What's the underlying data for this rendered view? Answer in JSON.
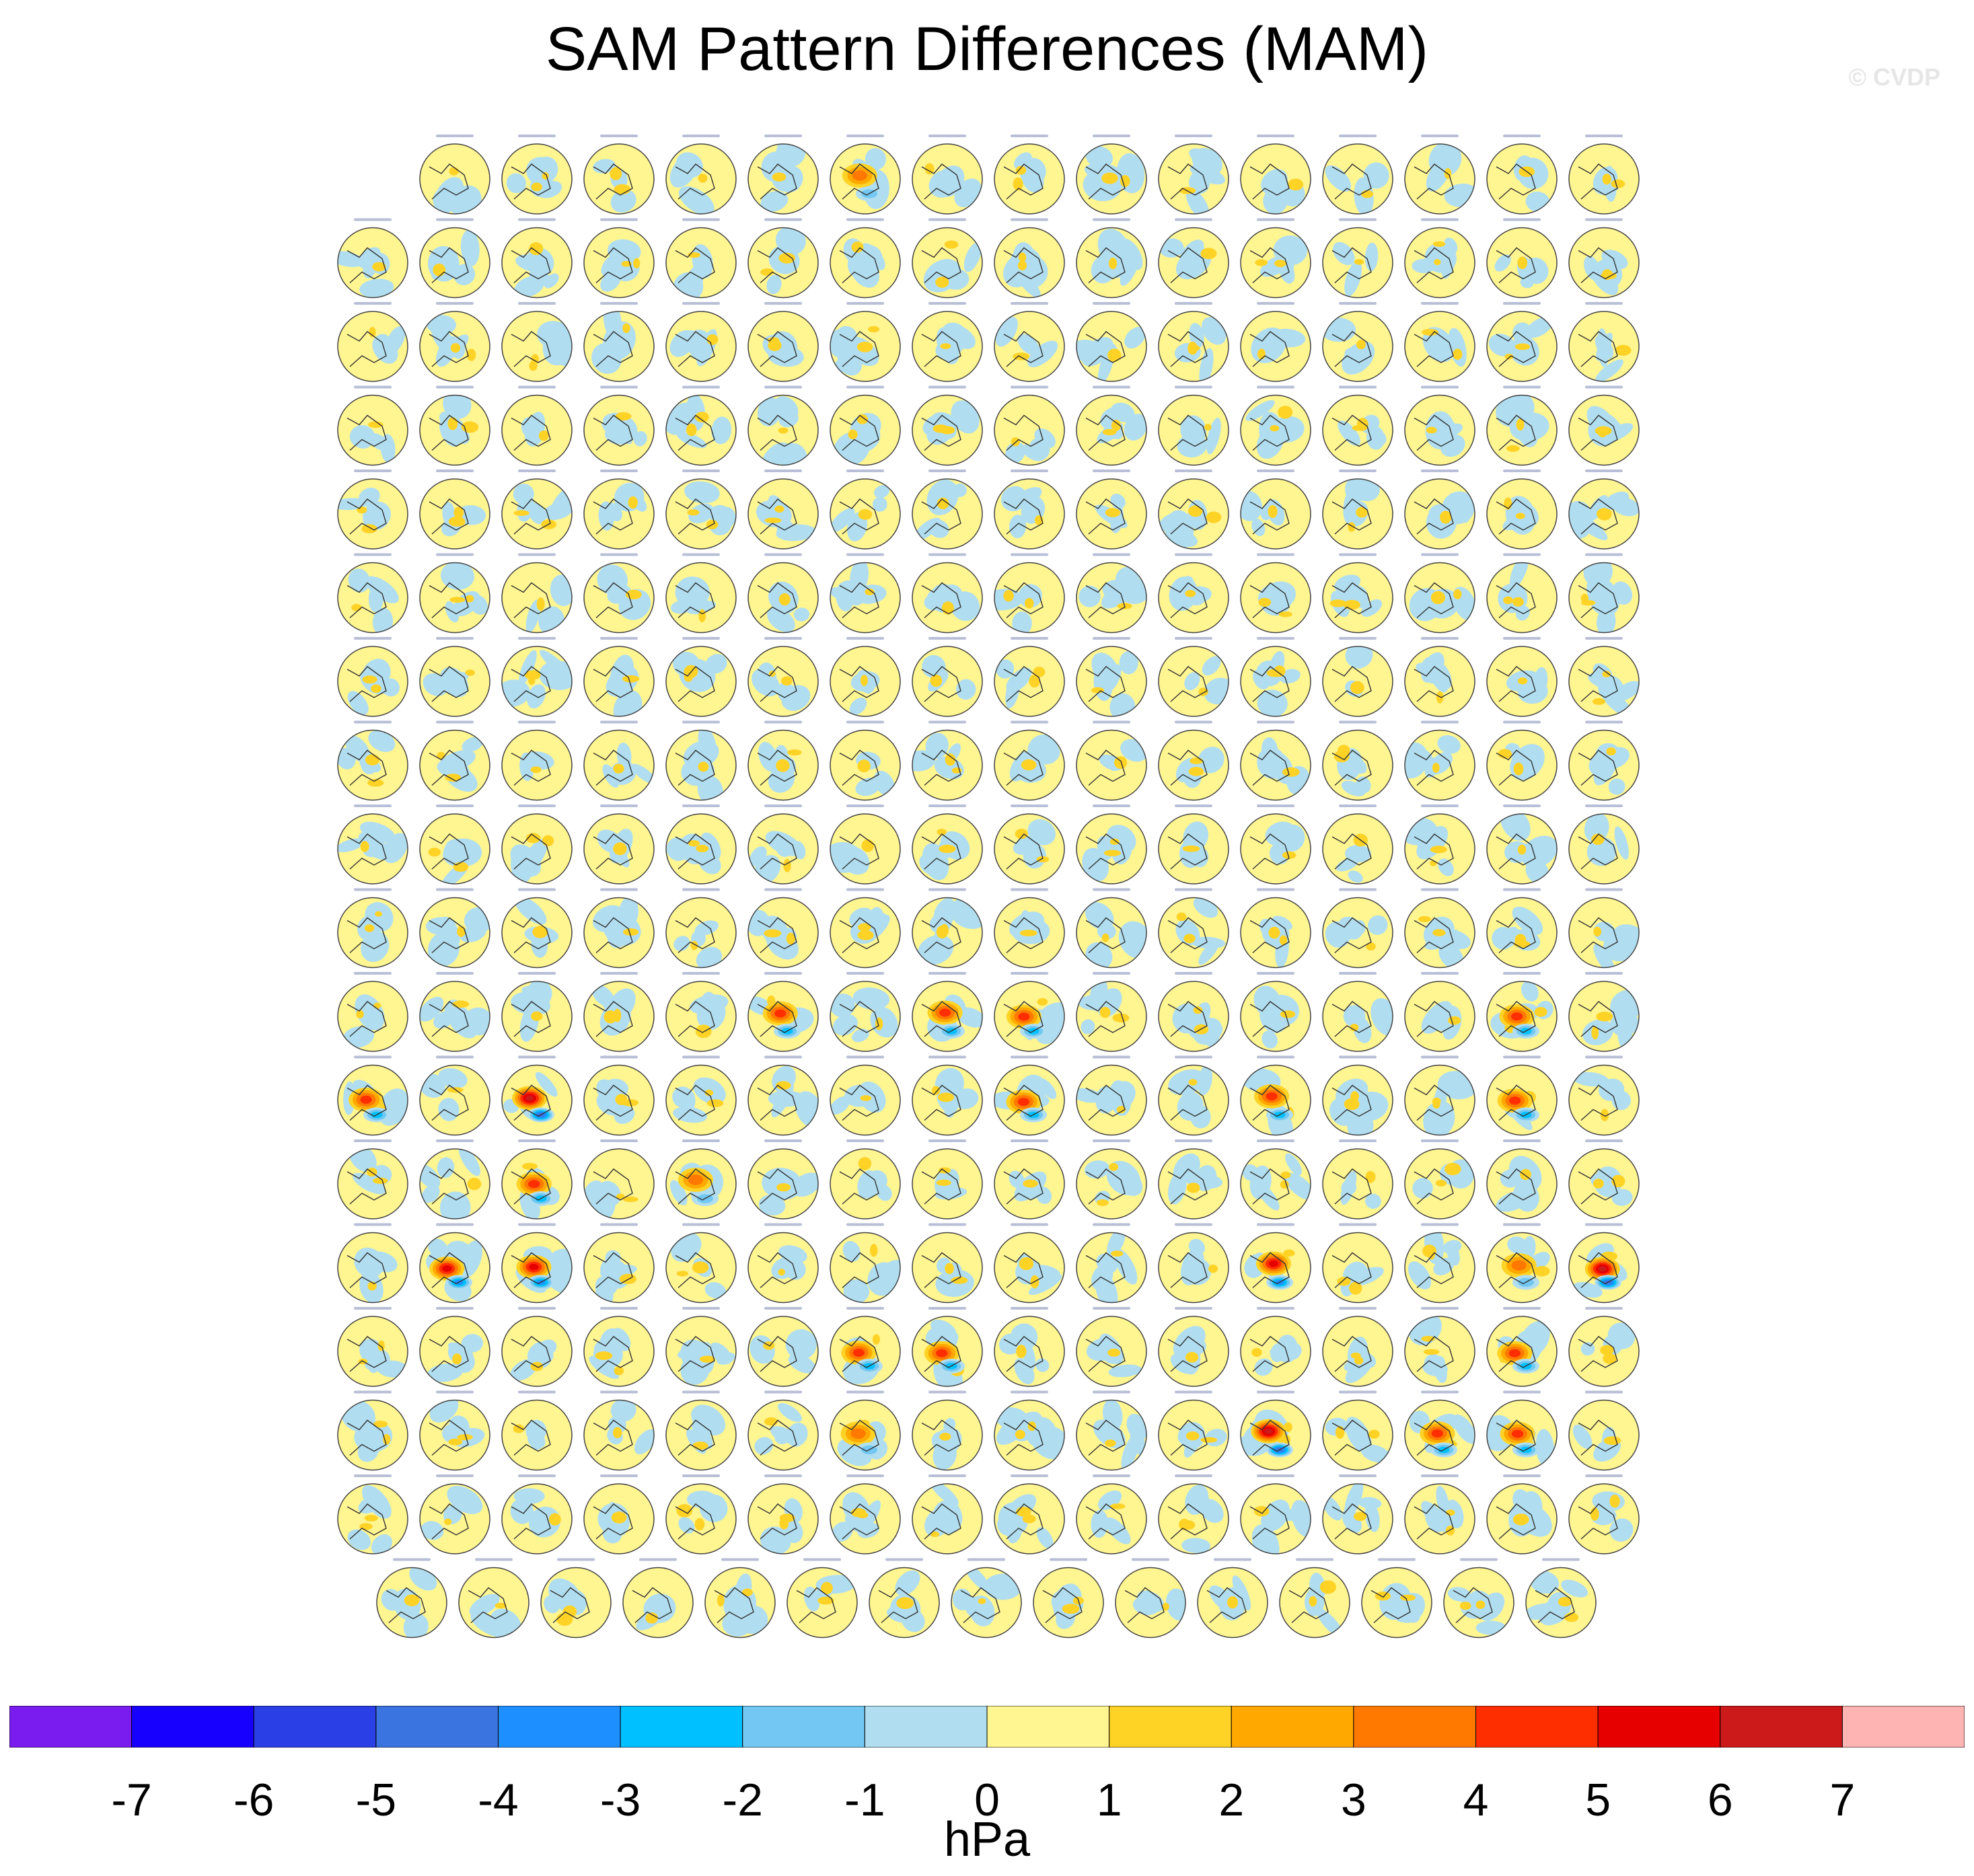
{
  "title": "SAM Pattern Differences (MAM)",
  "credit": "© CVDP",
  "colorbar": {
    "units": "hPa",
    "tick_labels": [
      "-7",
      "-6",
      "-5",
      "-4",
      "-3",
      "-2",
      "-1",
      "0",
      "1",
      "2",
      "3",
      "4",
      "5",
      "6",
      "7"
    ],
    "colors": [
      "#7a1cf0",
      "#1800ff",
      "#2a40e6",
      "#3a74e0",
      "#1e8fff",
      "#00c0ff",
      "#72c8f2",
      "#b0def0",
      "#fff591",
      "#ffd326",
      "#ffa800",
      "#ff7800",
      "#ff2e00",
      "#e60000",
      "#cc1a1a",
      "#ffb4b4"
    ]
  },
  "chart_data": {
    "type": "heatmap",
    "title": "SAM Pattern Differences (MAM)",
    "description_units": "hPa",
    "panel_rows": [
      15,
      16,
      16,
      16,
      16,
      16,
      16,
      16,
      16,
      16,
      16,
      16,
      16,
      16,
      16,
      16,
      16,
      15
    ],
    "levels": [
      -7,
      -6,
      -5,
      -4,
      -3,
      -2,
      -1,
      0,
      1,
      2,
      3,
      4,
      5,
      6,
      7
    ],
    "strong_panels": [
      {
        "row": 0,
        "col": 6,
        "peak": 3
      },
      {
        "row": 10,
        "col": 5,
        "peak": 4
      },
      {
        "row": 10,
        "col": 7,
        "peak": 4
      },
      {
        "row": 10,
        "col": 8,
        "peak": 4
      },
      {
        "row": 10,
        "col": 14,
        "peak": 4
      },
      {
        "row": 11,
        "col": 0,
        "peak": 4
      },
      {
        "row": 11,
        "col": 2,
        "peak": 6
      },
      {
        "row": 11,
        "col": 8,
        "peak": 4
      },
      {
        "row": 11,
        "col": 11,
        "peak": 4
      },
      {
        "row": 11,
        "col": 14,
        "peak": 4
      },
      {
        "row": 12,
        "col": 2,
        "peak": 4
      },
      {
        "row": 12,
        "col": 4,
        "peak": 3
      },
      {
        "row": 13,
        "col": 1,
        "peak": 5
      },
      {
        "row": 13,
        "col": 2,
        "peak": 5
      },
      {
        "row": 13,
        "col": 11,
        "peak": 5
      },
      {
        "row": 13,
        "col": 14,
        "peak": 3
      },
      {
        "row": 13,
        "col": 15,
        "peak": 6
      },
      {
        "row": 14,
        "col": 6,
        "peak": 4
      },
      {
        "row": 14,
        "col": 7,
        "peak": 4
      },
      {
        "row": 14,
        "col": 14,
        "peak": 4
      },
      {
        "row": 15,
        "col": 6,
        "peak": 3
      },
      {
        "row": 15,
        "col": 11,
        "peak": 6
      },
      {
        "row": 15,
        "col": 13,
        "peak": 4
      },
      {
        "row": 15,
        "col": 14,
        "peak": 4
      }
    ]
  }
}
